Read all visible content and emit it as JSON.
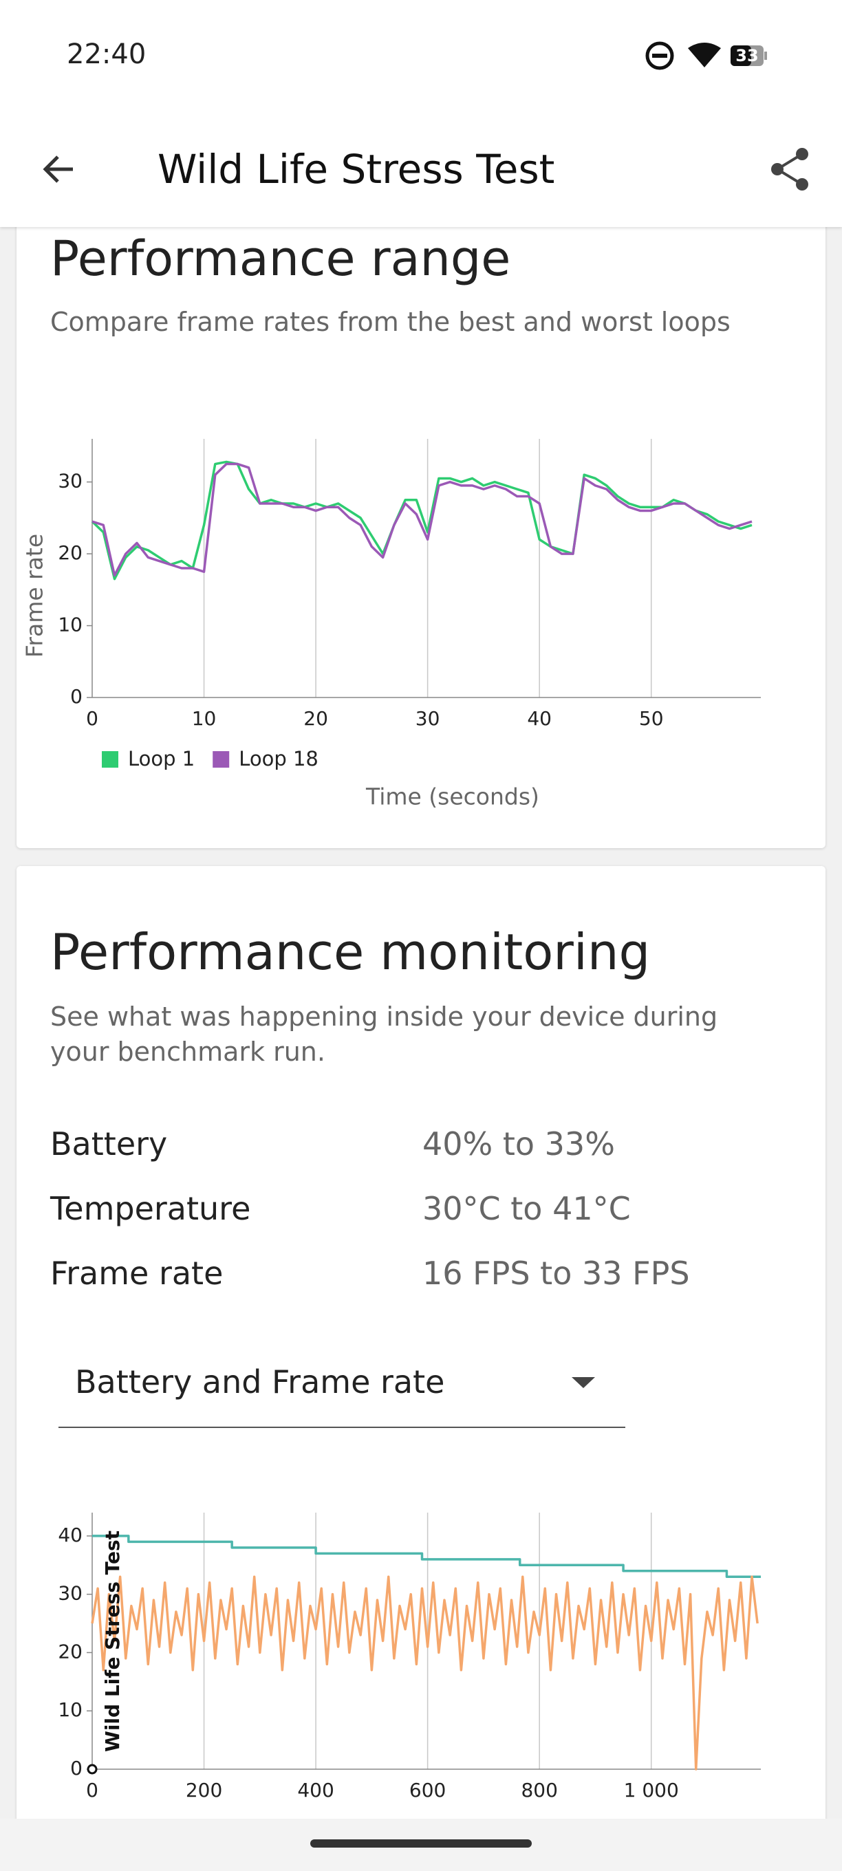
{
  "status_bar": {
    "time": "22:40",
    "battery": "33"
  },
  "app_bar": {
    "title": "Wild Life Stress Test"
  },
  "range_card": {
    "title": "Performance range",
    "subtitle": "Compare frame rates from the best and worst loops",
    "chart_data": {
      "type": "line",
      "xlabel": "Time (seconds)",
      "ylabel": "Frame rate",
      "grid": "x",
      "legend": "bottom-left",
      "xlim": [
        0,
        59.8
      ],
      "xticks": [
        0,
        10,
        20,
        30,
        40,
        50
      ],
      "ylim": [
        0,
        36
      ],
      "yticks": [
        0,
        10,
        20,
        30
      ],
      "x": [
        0,
        1,
        2,
        3,
        4,
        5,
        6,
        7,
        8,
        9,
        10,
        11,
        12,
        13,
        14,
        15,
        16,
        17,
        18,
        19,
        20,
        21,
        22,
        23,
        24,
        25,
        26,
        27,
        28,
        29,
        30,
        31,
        32,
        33,
        34,
        35,
        36,
        37,
        38,
        39,
        40,
        41,
        42,
        43,
        44,
        45,
        46,
        47,
        48,
        49,
        50,
        51,
        52,
        53,
        54,
        55,
        56,
        57,
        58,
        59
      ],
      "series": [
        {
          "name": "Loop 1",
          "color": "#2ecc71",
          "values": [
            24.5,
            23,
            16.5,
            19.5,
            21,
            20.5,
            19.5,
            18.5,
            19,
            18,
            24,
            32.5,
            32.8,
            32.5,
            29,
            27,
            27.5,
            27,
            27,
            26.5,
            27,
            26.5,
            27,
            26,
            25,
            22.5,
            20,
            24,
            27.5,
            27.5,
            23,
            30.5,
            30.5,
            30,
            30.5,
            29.5,
            30,
            29.5,
            29,
            28.5,
            22,
            21,
            20.5,
            20,
            31,
            30.5,
            29.5,
            28,
            27,
            26.5,
            26.5,
            26.5,
            27.5,
            27,
            26,
            25.5,
            24.5,
            24,
            23.5,
            24
          ]
        },
        {
          "name": "Loop 18",
          "color": "#9b59b6",
          "values": [
            24.5,
            24,
            17,
            20,
            21.5,
            19.5,
            19,
            18.5,
            18,
            18,
            17.5,
            31,
            32.5,
            32.5,
            32,
            27,
            27,
            27,
            26.5,
            26.5,
            26,
            26.5,
            26.5,
            25,
            24,
            21,
            19.5,
            24,
            27,
            25.5,
            22,
            29.5,
            30,
            29.5,
            29.5,
            29,
            29.5,
            29,
            28,
            28,
            27,
            21,
            20,
            20,
            30.5,
            29.5,
            29,
            27.5,
            26.5,
            26,
            26,
            26.5,
            27,
            27,
            26,
            25,
            24,
            23.5,
            24,
            24.5
          ]
        }
      ]
    }
  },
  "monitor_card": {
    "title": "Performance monitoring",
    "subtitle": "See what was happening inside your device during your benchmark run.",
    "stats": [
      {
        "label": "Battery",
        "value": "40% to 33%"
      },
      {
        "label": "Temperature",
        "value": "30°C to 41°C"
      },
      {
        "label": "Frame rate",
        "value": "16 FPS to 33 FPS"
      }
    ],
    "dropdown": "Battery and Frame rate",
    "chart_data": {
      "type": "line",
      "grid": "x",
      "annotation": "Wild Life Stress Test",
      "xlim": [
        0,
        1196
      ],
      "xticks": [
        0,
        200,
        400,
        600,
        800,
        {
          "value": 1000,
          "label": "1 000"
        }
      ],
      "ylim": [
        0,
        44
      ],
      "yticks": [
        0,
        10,
        20,
        30,
        40
      ],
      "x": [
        0,
        10,
        20,
        30,
        40,
        50,
        60,
        70,
        80,
        90,
        100,
        110,
        120,
        130,
        140,
        150,
        160,
        170,
        180,
        190,
        200,
        210,
        220,
        230,
        240,
        250,
        260,
        270,
        280,
        290,
        300,
        310,
        320,
        330,
        340,
        350,
        360,
        370,
        380,
        390,
        400,
        410,
        420,
        430,
        440,
        450,
        460,
        470,
        480,
        490,
        500,
        510,
        520,
        530,
        540,
        550,
        560,
        570,
        580,
        590,
        600,
        610,
        620,
        630,
        640,
        650,
        660,
        670,
        680,
        690,
        700,
        710,
        720,
        730,
        740,
        750,
        760,
        770,
        780,
        790,
        800,
        810,
        820,
        830,
        840,
        850,
        860,
        870,
        880,
        890,
        900,
        910,
        920,
        930,
        940,
        950,
        960,
        970,
        980,
        990,
        1000,
        1010,
        1020,
        1030,
        1040,
        1050,
        1060,
        1070,
        1080,
        1090,
        1100,
        1110,
        1120,
        1130,
        1140,
        1150,
        1160,
        1170,
        1180,
        1190
      ],
      "series": [
        {
          "color": "#4db6ac",
          "x": [
            0,
            65,
            65,
            250,
            250,
            400,
            400,
            590,
            590,
            765,
            765,
            950,
            950,
            1135,
            1135,
            1196
          ],
          "values": [
            40,
            40,
            39,
            39,
            38,
            38,
            37,
            37,
            36,
            36,
            35,
            35,
            34,
            34,
            33,
            33
          ]
        },
        {
          "color": "#f5a76c",
          "values": [
            25,
            31,
            17,
            30,
            22,
            33,
            19,
            28,
            24,
            31,
            18,
            29,
            21,
            32,
            20,
            27,
            23,
            31,
            17,
            30,
            22,
            32,
            19,
            29,
            24,
            31,
            18,
            28,
            21,
            33,
            20,
            30,
            23,
            31,
            17,
            29,
            22,
            32,
            19,
            28,
            24,
            31,
            18,
            30,
            21,
            32,
            20,
            27,
            23,
            31,
            17,
            29,
            22,
            33,
            19,
            28,
            24,
            30,
            18,
            31,
            21,
            32,
            20,
            29,
            23,
            31,
            17,
            28,
            22,
            32,
            19,
            30,
            24,
            31,
            18,
            29,
            21,
            33,
            20,
            27,
            23,
            31,
            17,
            30,
            22,
            32,
            19,
            28,
            24,
            31,
            18,
            29,
            21,
            32,
            20,
            30,
            23,
            31,
            17,
            28,
            22,
            32,
            19,
            29,
            24,
            31,
            18,
            30,
            0,
            19,
            27,
            23,
            31,
            17,
            29,
            22,
            32,
            19,
            33,
            25
          ]
        }
      ]
    }
  }
}
